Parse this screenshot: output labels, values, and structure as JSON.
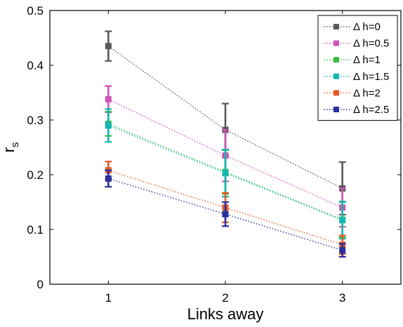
{
  "chart_data": {
    "type": "line",
    "xlabel": "Links away",
    "ylabel": "r",
    "ylabel_sub": "s",
    "x": [
      1,
      2,
      3
    ],
    "xlim": [
      0.5,
      3.5
    ],
    "ylim": [
      0,
      0.5
    ],
    "xticks": [
      "1",
      "2",
      "3"
    ],
    "yticks": [
      "0",
      "0.1",
      "0.2",
      "0.3",
      "0.4",
      "0.5"
    ],
    "grid": false,
    "legend_position": "top-right",
    "series": [
      {
        "name": "Δ h=0",
        "color": "#5a5a5a",
        "values": [
          0.435,
          0.282,
          0.175
        ],
        "error": [
          0.027,
          0.048,
          0.048
        ]
      },
      {
        "name": "Δ h=0.5",
        "color": "#cc55b8",
        "values": [
          0.338,
          0.235,
          0.14
        ],
        "error": [
          0.024,
          0.047,
          0.035
        ]
      },
      {
        "name": "Δ h=1",
        "color": "#3cba3c",
        "values": [
          0.293,
          0.205,
          0.118
        ],
        "error": [
          0.022,
          0.04,
          0.032
        ]
      },
      {
        "name": "Δ h=1.5",
        "color": "#14b8b0",
        "values": [
          0.29,
          0.203,
          0.117
        ],
        "error": [
          0.03,
          0.043,
          0.034
        ]
      },
      {
        "name": "Δ h=2",
        "color": "#e65a28",
        "values": [
          0.208,
          0.14,
          0.072
        ],
        "error": [
          0.016,
          0.027,
          0.017
        ]
      },
      {
        "name": "Δ h=2.5",
        "color": "#2a2f9e",
        "values": [
          0.193,
          0.128,
          0.062
        ],
        "error": [
          0.015,
          0.022,
          0.012
        ]
      }
    ]
  }
}
